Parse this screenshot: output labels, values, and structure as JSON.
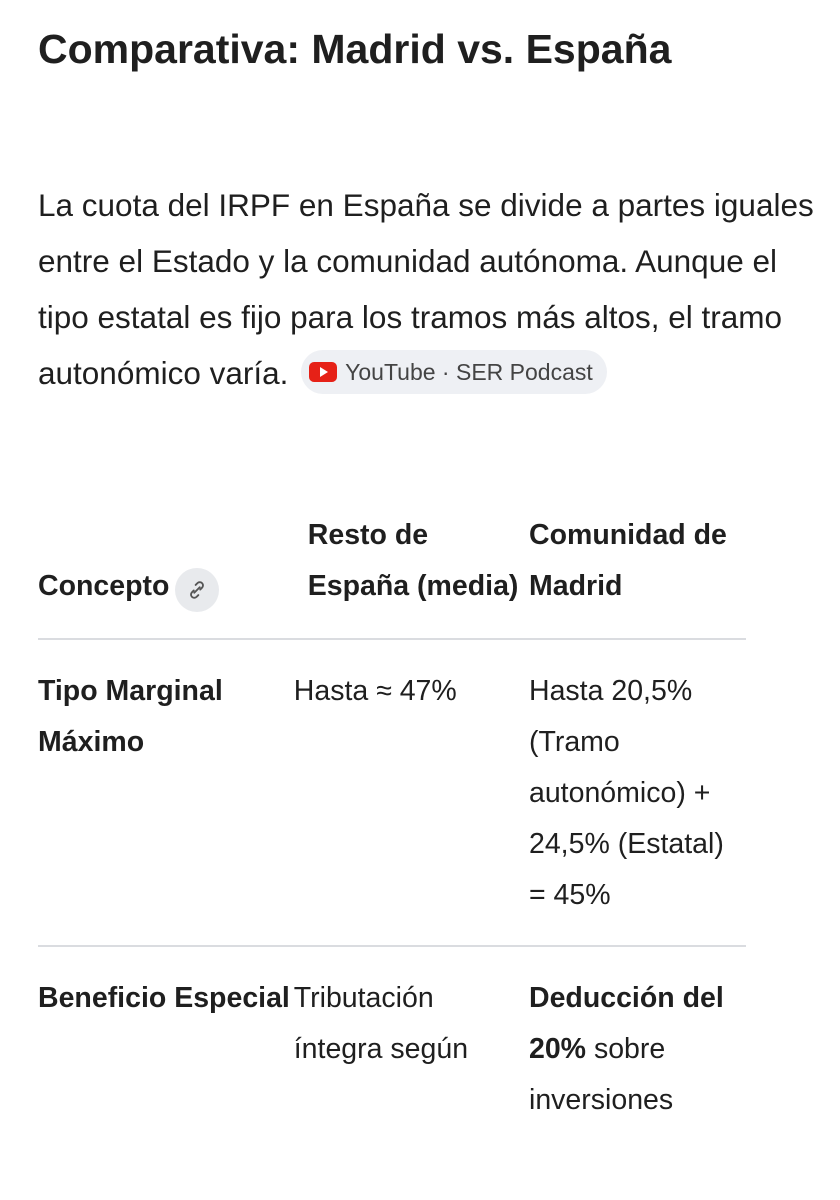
{
  "heading": "Comparativa: Madrid vs. España",
  "paragraph": "La cuota del IRPF en España se divide a partes iguales entre el Estado y la comunidad autónoma. Aunque el tipo estatal es fijo para los tramos más altos, el tramo autonómico varía.",
  "source_chip": "YouTube · SER Podcast",
  "table": {
    "header": [
      "Concepto",
      "Resto de España (media)",
      "Comunidad de Madrid"
    ],
    "rows": [
      [
        "Tipo Marginal Máximo",
        "Hasta ≈ 47%",
        "Hasta 20,5% (Tramo autonómico) + 24,5% (Estatal) = 45%"
      ],
      [
        "Beneficio Especial",
        "Tributación íntegra según",
        {
          "bold": "Deducción del 20%",
          "text": "sobre inversiones"
        }
      ]
    ]
  }
}
